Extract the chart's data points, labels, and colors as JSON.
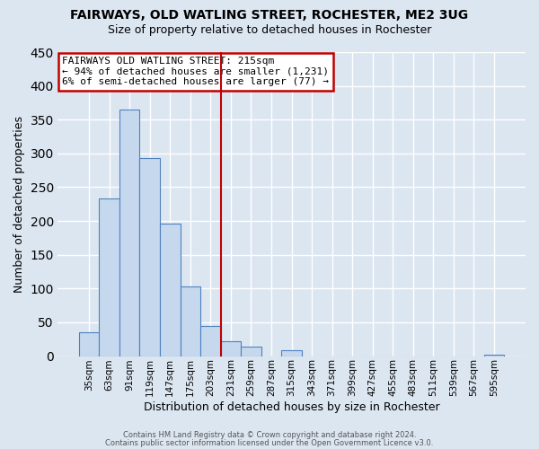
{
  "title": "FAIRWAYS, OLD WATLING STREET, ROCHESTER, ME2 3UG",
  "subtitle": "Size of property relative to detached houses in Rochester",
  "xlabel": "Distribution of detached houses by size in Rochester",
  "ylabel": "Number of detached properties",
  "bar_labels": [
    "35sqm",
    "63sqm",
    "91sqm",
    "119sqm",
    "147sqm",
    "175sqm",
    "203sqm",
    "231sqm",
    "259sqm",
    "287sqm",
    "315sqm",
    "343sqm",
    "371sqm",
    "399sqm",
    "427sqm",
    "455sqm",
    "483sqm",
    "511sqm",
    "539sqm",
    "567sqm",
    "595sqm"
  ],
  "bar_values": [
    35,
    233,
    365,
    293,
    196,
    103,
    45,
    22,
    14,
    0,
    9,
    0,
    0,
    0,
    0,
    0,
    0,
    0,
    0,
    0,
    2
  ],
  "bar_color": "#c5d8ed",
  "bar_edge_color": "#4f81bd",
  "annotation_title": "FAIRWAYS OLD WATLING STREET: 215sqm",
  "annotation_line1": "← 94% of detached houses are smaller (1,231)",
  "annotation_line2": "6% of semi-detached houses are larger (77) →",
  "vline_x_index": 6.5,
  "vline_color": "#c00000",
  "annotation_box_edge": "#c00000",
  "ylim": [
    0,
    450
  ],
  "yticks": [
    0,
    50,
    100,
    150,
    200,
    250,
    300,
    350,
    400,
    450
  ],
  "footer1": "Contains HM Land Registry data © Crown copyright and database right 2024.",
  "footer2": "Contains public sector information licensed under the Open Government Licence v3.0.",
  "bg_color": "#dce6f1",
  "plot_bg_color": "#dce6f1",
  "grid_color": "#ffffff"
}
